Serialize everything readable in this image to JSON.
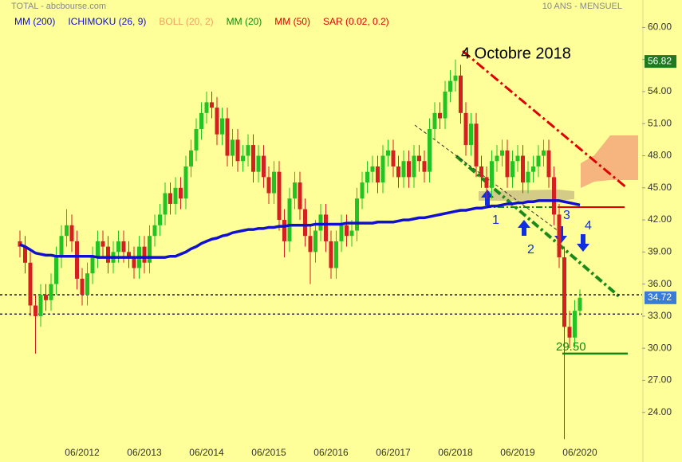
{
  "header": {
    "source": "TOTAL - abcbourse.com",
    "period": "10 ANS - MENSUEL"
  },
  "chart_data": {
    "type": "candlestick",
    "background": "#ffff99",
    "up_color": "#22c322",
    "down_color": "#d42020",
    "categories": [
      null,
      null,
      null,
      null,
      null,
      null,
      null,
      null,
      null,
      null,
      null,
      null,
      "06/2012",
      null,
      null,
      null,
      null,
      null,
      null,
      null,
      null,
      null,
      null,
      null,
      "06/2013",
      null,
      null,
      null,
      null,
      null,
      null,
      null,
      null,
      null,
      null,
      null,
      "06/2014",
      null,
      null,
      null,
      null,
      null,
      null,
      null,
      null,
      null,
      null,
      null,
      "06/2015",
      null,
      null,
      null,
      null,
      null,
      null,
      null,
      null,
      null,
      null,
      null,
      "06/2016",
      null,
      null,
      null,
      null,
      null,
      null,
      null,
      null,
      null,
      null,
      null,
      "06/2017",
      null,
      null,
      null,
      null,
      null,
      null,
      null,
      null,
      null,
      null,
      null,
      "06/2018",
      null,
      null,
      null,
      null,
      null,
      null,
      null,
      null,
      null,
      null,
      null,
      "06/2019",
      null,
      null,
      null,
      null,
      null,
      null,
      null,
      null,
      null,
      null,
      null,
      "06/2020"
    ],
    "open": [
      40.0,
      39.5,
      38.0,
      34.0,
      33.0,
      35.0,
      34.5,
      36.0,
      38.5,
      40.5,
      41.5,
      40.0,
      36.5,
      35.0,
      37.0,
      38.5,
      40.0,
      39.5,
      38.0,
      39.0,
      40.0,
      39.0,
      38.5,
      37.5,
      39.5,
      38.0,
      40.5,
      41.5,
      42.5,
      44.5,
      43.5,
      45.0,
      44.0,
      47.0,
      48.5,
      50.5,
      52.0,
      53.0,
      52.5,
      50.0,
      51.5,
      48.0,
      49.5,
      47.5,
      48.0,
      49.0,
      46.5,
      48.0,
      46.0,
      44.5,
      46.5,
      42.0,
      40.0,
      44.0,
      45.5,
      43.0,
      40.5,
      39.0,
      41.0,
      42.5,
      40.0,
      37.5,
      40.0,
      41.5,
      40.5,
      41.0,
      44.0,
      45.5,
      46.5,
      47.0,
      45.5,
      48.0,
      48.5,
      47.0,
      46.0,
      47.5,
      46.0,
      48.0,
      47.5,
      46.5,
      50.5,
      52.0,
      51.5,
      54.0,
      55.0,
      55.5,
      52.0,
      49.0,
      51.0,
      47.0,
      46.0,
      45.0,
      47.5,
      48.0,
      48.5,
      46.0,
      47.5,
      48.0,
      45.5,
      46.5,
      47.0,
      48.0,
      48.5,
      46.0,
      42.5,
      38.5,
      32.0,
      31.0,
      33.5
    ],
    "high": [
      41,
      40.5,
      39,
      35,
      36,
      36,
      37,
      39.5,
      41.5,
      43,
      42.5,
      41,
      37.5,
      38,
      39.5,
      41,
      41,
      40.5,
      40,
      41,
      41,
      40,
      39.5,
      40.5,
      40.5,
      41.5,
      42.5,
      43.5,
      45.5,
      45.5,
      46,
      46,
      48,
      49.5,
      51.5,
      53,
      54,
      54,
      53.5,
      52.5,
      52.5,
      50.5,
      50.5,
      49,
      50,
      50,
      49,
      49,
      47,
      47.5,
      47.5,
      43,
      45,
      46.5,
      46.5,
      44,
      41.5,
      42,
      43.5,
      43.5,
      41,
      41,
      42.5,
      42.5,
      42,
      45,
      46.5,
      47.5,
      48,
      48,
      49,
      49.5,
      49.5,
      48,
      48.5,
      48.5,
      49,
      49,
      48.5,
      51.5,
      53,
      53,
      55,
      56,
      57,
      56.5,
      53,
      52,
      52,
      48,
      47,
      48.5,
      49,
      49.5,
      49.5,
      48.5,
      49,
      49,
      47.5,
      48,
      49,
      49.5,
      49.5,
      47,
      43.5,
      39.5,
      33.5,
      34.5,
      35.5
    ],
    "low": [
      38.5,
      37,
      33,
      29.5,
      32,
      33.5,
      33.5,
      35,
      37.5,
      39.5,
      39,
      35.5,
      34,
      34,
      36,
      37.5,
      38.5,
      37,
      37,
      38,
      38,
      37.5,
      36.5,
      36.5,
      37,
      37,
      39.5,
      40.5,
      41.5,
      42.5,
      42.5,
      43,
      43,
      46,
      47.5,
      49.5,
      51,
      51.5,
      49,
      49,
      47,
      47,
      46.5,
      46.5,
      47,
      45.5,
      45.5,
      45,
      43.5,
      43.5,
      41,
      38.5,
      39,
      43,
      42,
      39.5,
      36,
      38,
      40,
      39,
      36.5,
      36.5,
      39,
      39.5,
      39.5,
      40,
      43,
      44.5,
      45.5,
      44.5,
      44.5,
      47,
      46,
      45,
      45,
      45,
      45,
      46.5,
      45.5,
      45.5,
      49.5,
      50.5,
      50.5,
      53,
      54,
      51,
      48,
      48,
      46,
      45,
      44,
      44,
      46.5,
      47,
      45,
      45,
      46.5,
      44.5,
      44.5,
      45.5,
      46,
      47,
      45,
      41.5,
      37.5,
      21.5,
      30,
      30,
      33
    ],
    "close": [
      39.5,
      38.0,
      34.0,
      33.0,
      35.0,
      34.5,
      36.0,
      38.5,
      40.5,
      41.5,
      40.0,
      36.5,
      35.0,
      37.0,
      38.5,
      40.0,
      39.5,
      38.0,
      39.0,
      40.0,
      39.0,
      38.5,
      37.5,
      39.5,
      38.0,
      40.5,
      41.5,
      42.5,
      44.5,
      43.5,
      45.0,
      44.0,
      47.0,
      48.5,
      50.5,
      52.0,
      53.0,
      52.5,
      50.0,
      51.5,
      48.0,
      49.5,
      47.5,
      48.0,
      49.0,
      46.5,
      48.0,
      46.0,
      44.5,
      46.5,
      42.0,
      40.0,
      44.0,
      45.5,
      43.0,
      40.5,
      39.0,
      41.0,
      42.5,
      40.0,
      37.5,
      40.0,
      41.5,
      40.5,
      41.0,
      44.0,
      45.5,
      46.5,
      47.0,
      45.5,
      48.0,
      48.5,
      47.0,
      46.0,
      47.5,
      46.0,
      48.0,
      47.5,
      46.5,
      50.5,
      52.0,
      51.5,
      54.0,
      55.0,
      55.5,
      52.0,
      49.0,
      51.0,
      47.0,
      46.0,
      45.0,
      47.5,
      48.0,
      48.5,
      46.0,
      47.5,
      48.0,
      45.5,
      46.5,
      47.0,
      48.0,
      48.5,
      46.0,
      42.5,
      38.5,
      32.0,
      31.0,
      33.5,
      34.72
    ],
    "series": [
      {
        "name": "MM (200)",
        "color": "#1010d0",
        "values": [
          39.7,
          39.5,
          39.2,
          38.9,
          38.8,
          38.7,
          38.7,
          38.6,
          38.6,
          38.6,
          38.6,
          38.6,
          38.6,
          38.6,
          38.6,
          38.5,
          38.5,
          38.5,
          38.5,
          38.5,
          38.5,
          38.5,
          38.5,
          38.5,
          38.5,
          38.5,
          38.5,
          38.5,
          38.5,
          38.6,
          38.6,
          38.8,
          39.0,
          39.3,
          39.5,
          39.8,
          40.0,
          40.2,
          40.3,
          40.5,
          40.6,
          40.8,
          40.9,
          41.0,
          41.1,
          41.1,
          41.2,
          41.2,
          41.3,
          41.3,
          41.4,
          41.4,
          41.5,
          41.5,
          41.5,
          41.5,
          41.5,
          41.6,
          41.6,
          41.6,
          41.6,
          41.6,
          41.6,
          41.7,
          41.7,
          41.7,
          41.7,
          41.7,
          41.7,
          41.8,
          41.8,
          41.8,
          41.8,
          41.9,
          42.0,
          42.0,
          42.1,
          42.2,
          42.2,
          42.3,
          42.4,
          42.5,
          42.6,
          42.7,
          42.8,
          42.9,
          42.9,
          43.0,
          43.1,
          43.1,
          43.2,
          43.3,
          43.3,
          43.4,
          43.5,
          43.5,
          43.6,
          43.6,
          43.7,
          43.7,
          43.8,
          43.8,
          43.8,
          43.8,
          43.8,
          43.7,
          43.6,
          43.5,
          43.4
        ]
      }
    ],
    "indicators": [
      {
        "name": "ICHIMOKU (26, 9)",
        "color": "#1010d0"
      },
      {
        "name": "BOLL (20, 2)",
        "color": "#f0a060"
      },
      {
        "name": "MM (20)",
        "color": "#118811"
      },
      {
        "name": "MM (50)",
        "color": "#e00000"
      },
      {
        "name": "SAR (0.02, 0.2)",
        "color": "#e00000"
      }
    ],
    "ylim": [
      21,
      61
    ],
    "yticks": [
      {
        "value": 24,
        "label": "24.00"
      },
      {
        "value": 27,
        "label": "27.00"
      },
      {
        "value": 30,
        "label": "30.00"
      },
      {
        "value": 33,
        "label": "33.00"
      },
      {
        "value": 36,
        "label": "36.00"
      },
      {
        "value": 39,
        "label": "39.00"
      },
      {
        "value": 42,
        "label": "42.00"
      },
      {
        "value": 45,
        "label": "45.00"
      },
      {
        "value": 48,
        "label": "48.00"
      },
      {
        "value": 51,
        "label": "51.00"
      },
      {
        "value": 54,
        "label": "54.00"
      },
      {
        "value": 57,
        "label": "57.00"
      },
      {
        "value": 60,
        "label": "60.00"
      }
    ],
    "levels": [
      {
        "value": 35.0,
        "color": "#000000",
        "dashed": true
      },
      {
        "value": 33.2,
        "color": "#000000",
        "dashed": true
      },
      {
        "value": 43.2,
        "color": "#e00000",
        "dashed": false
      }
    ],
    "price_labels": [
      {
        "value": 56.82,
        "color": "#1e7a1e"
      },
      {
        "value": 34.72,
        "color": "#3a7bd5"
      }
    ],
    "support": {
      "value": 29.5,
      "label": "29.50",
      "color": "#118811"
    },
    "annotations": {
      "date": "4  Octobre 2018",
      "signals": [
        "1",
        "2",
        "3",
        "4"
      ]
    }
  }
}
